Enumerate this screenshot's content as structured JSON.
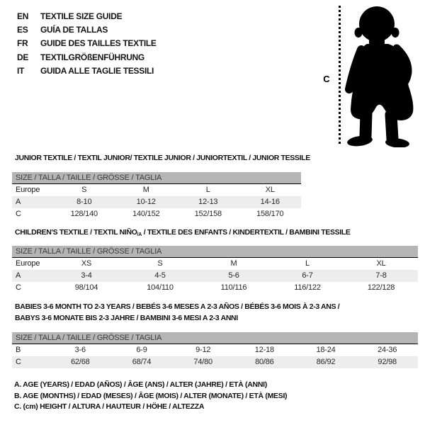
{
  "languages": [
    {
      "code": "EN",
      "title": "TEXTILE SIZE GUIDE"
    },
    {
      "code": "ES",
      "title": "GUÍA DE TALLAS"
    },
    {
      "code": "FR",
      "title": "GUIDE DES TAILLES TEXTILE"
    },
    {
      "code": "DE",
      "title": "TEXTILGRÖßENFÜHRUNG"
    },
    {
      "code": "IT",
      "title": "GUIDA ALLE TAGLIE TESSILI"
    }
  ],
  "figure": {
    "height_label": "C",
    "image": "baby-silhouette"
  },
  "sections": [
    {
      "title": "JUNIOR TEXTILE / TEXTIL JUNIOR/ TEXTILE JUNIOR / JUNIORTEXTIL / JUNIOR TESSILE",
      "size_header": "SIZE / TALLA / TAILLE / GRÖSSE / TAGLIA",
      "rows": [
        {
          "label": "Europe",
          "values": [
            "S",
            "M",
            "L",
            "XL"
          ],
          "shaded": false
        },
        {
          "label": "A",
          "values": [
            "8-10",
            "10-12",
            "12-13",
            "14-16"
          ],
          "shaded": true
        },
        {
          "label": "C",
          "values": [
            "128/140",
            "140/152",
            "152/158",
            "158/170"
          ],
          "shaded": false
        }
      ]
    },
    {
      "title_pre": "CHILDREN'S TEXTILE / TEXTIL NIÑO",
      "title_sub": "/A",
      "title_post": " / TEXTILE DES ENFANTS / KINDERTEXTIL / BAMBINI TESSILE",
      "size_header": "SIZE / TALLA / TAILLE / GRÖSSE / TAGLIA",
      "rows": [
        {
          "label": "Europe",
          "values": [
            "XS",
            "S",
            "M",
            "L",
            "XL"
          ],
          "shaded": false
        },
        {
          "label": "A",
          "values": [
            "3-4",
            "4-5",
            "5-6",
            "6-7",
            "7-8"
          ],
          "shaded": true
        },
        {
          "label": "C",
          "values": [
            "98/104",
            "104/110",
            "110/116",
            "116/122",
            "122/128"
          ],
          "shaded": false
        }
      ]
    },
    {
      "title_line1": "BABIES 3-6 MONTH TO 2-3 YEARS / BEBÉS 3-6 MESES A 2-3 AÑOS / BÉBÉS 3-6 MOIS À 2-3 ANS /",
      "title_line2": "BABYS 3-6 MONATE BIS 2-3 JAHRE / BAMBINI 3-6 MESI A 2-3 ANNI",
      "size_header": "SIZE / TALLA / TAILLE / GRÖSSE / TAGLIA",
      "rows": [
        {
          "label": "B",
          "values": [
            "3-6",
            "6-9",
            "9-12",
            "12-18",
            "18-24",
            "24-36"
          ],
          "shaded": false
        },
        {
          "label": "C",
          "values": [
            "62/68",
            "68/74",
            "74/80",
            "80/86",
            "86/92",
            "92/98"
          ],
          "shaded": true
        }
      ]
    }
  ],
  "legend": [
    "A. AGE (YEARS) / EDAD (AÑOS) / ÂGE (ANS) / ALTER (JAHRE) / ETÀ (ANNI)",
    "B. AGE (MONTHS) / EDAD (MESES) / ÂGE (MOIS) / ALTER (MONATE) / ETÀ (MESI)",
    "C. (cm) HEIGHT / ALTURA / HAUTEUR / HÖHE / ALTEZZA"
  ],
  "colors": {
    "table_header_bar": "#b5b5b5",
    "shaded_row": "#ededed",
    "ink": "#111111"
  }
}
